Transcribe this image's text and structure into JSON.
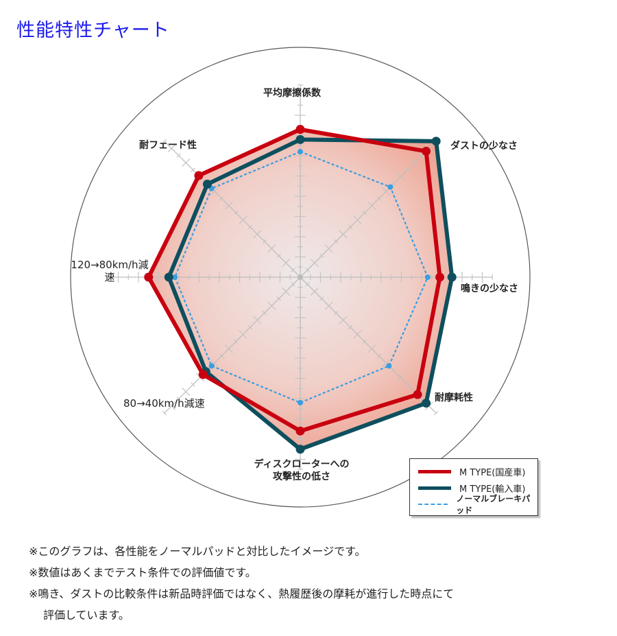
{
  "title": "性能特性チャート",
  "chart_data": {
    "type": "radar",
    "axes": [
      "平均摩擦係数",
      "ダストの少なさ",
      "鳴きの少なさ",
      "耐摩耗性",
      "ディスクローターへの攻撃性の低さ",
      "80→40km/h減速",
      "120→80km/h減速",
      "耐フェード性"
    ],
    "axis_label_lines": {
      "disc": [
        "ディスクローターへの",
        "攻撃性の低さ"
      ],
      "hs": [
        "120→80km/h",
        "減速"
      ]
    },
    "range": [
      0,
      10
    ],
    "grid": true,
    "legend_position": "bottom-right",
    "series": [
      {
        "name": "M TYPE(国産車)",
        "color": "#c8000f",
        "style": "solid",
        "values": [
          7.3,
          8.8,
          6.9,
          8.2,
          7.6,
          6.8,
          7.5,
          7.1
        ]
      },
      {
        "name": "M TYPE(輸入車)",
        "color": "#0e4f5e",
        "style": "solid",
        "values": [
          6.8,
          9.5,
          7.5,
          8.8,
          8.5,
          6.6,
          6.5,
          6.5
        ]
      },
      {
        "name": "ノーマルブレーキパッド",
        "color": "#3a9ee0",
        "style": "dotted",
        "values": [
          6.2,
          6.3,
          6.3,
          6.2,
          6.2,
          6.2,
          6.2,
          6.2
        ]
      }
    ]
  },
  "notes": [
    "※このグラフは、各性能をノーマルパッドと対比したイメージです。",
    "※数値はあくまでテスト条件での評価値です。",
    "※鳴き、ダストの比較条件は新品時評価ではなく、熱履歴後の摩耗が進行した時点にて",
    "評価しています。"
  ]
}
